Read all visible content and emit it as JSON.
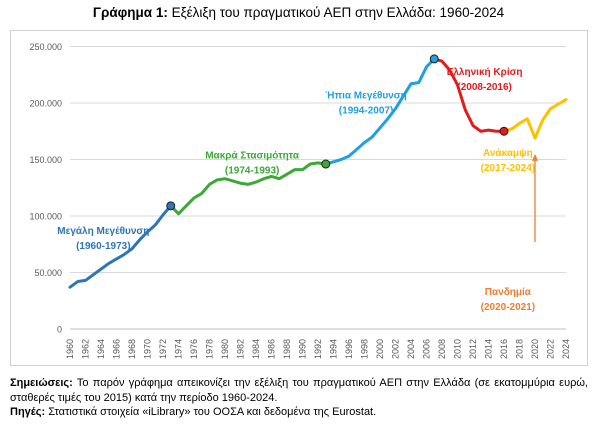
{
  "title": {
    "bold": "Γράφημα 1:",
    "text": " Εξέλιξη του πραγματικού ΑΕΠ στην Ελλάδα: 1960-2024"
  },
  "notes": {
    "note_label": "Σημειώσεις:",
    "note_text": " Το παρόν γράφημα απεικονίζει την εξέλιξη του πραγματικού ΑΕΠ στην Ελλάδα (σε εκατομμύρια ευρώ, σταθερές τιμές του 2015) κατά την περίοδο 1960-2024.",
    "source_label": "Πηγές:",
    "source_text": " Στατιστικά στοιχεία «iLibrary» του ΟΟΣΑ και δεδομένα της Eurostat."
  },
  "colors": {
    "phase1": "#2e75b6",
    "phase2": "#3aaa35",
    "phase3": "#1fa0e0",
    "phase4": "#e41a1c",
    "phase5": "#ffc000",
    "pandemic": "#ed7d31"
  },
  "chart_data": {
    "type": "line",
    "title": "",
    "xlabel": "",
    "ylabel": "",
    "ylim": [
      0,
      250000
    ],
    "y_ticks": [
      0,
      50000,
      100000,
      150000,
      200000,
      250000
    ],
    "y_tick_labels": [
      "0",
      "50.000",
      "100.000",
      "150.000",
      "200.000",
      "250.000"
    ],
    "x_ticks": [
      1960,
      1962,
      1964,
      1966,
      1968,
      1970,
      1972,
      1974,
      1976,
      1978,
      1980,
      1982,
      1984,
      1986,
      1988,
      1990,
      1992,
      1994,
      1996,
      1998,
      2000,
      2002,
      2004,
      2006,
      2008,
      2010,
      2012,
      2014,
      2016,
      2018,
      2020,
      2022,
      2024
    ],
    "grid": "horizontal",
    "series": [
      {
        "label": "Μεγάλη Μεγέθυνση (1960-1973)",
        "color": "#2e75b6",
        "x": [
          1960,
          1961,
          1962,
          1963,
          1964,
          1965,
          1966,
          1967,
          1968,
          1969,
          1970,
          1971,
          1972,
          1973
        ],
        "y": [
          37000,
          42000,
          43000,
          48000,
          53000,
          58000,
          62000,
          66000,
          71000,
          79000,
          86000,
          92000,
          101000,
          109000
        ]
      },
      {
        "label": "Μακρά Στασιμότητα (1974-1993)",
        "color": "#3aaa35",
        "x": [
          1973,
          1974,
          1975,
          1976,
          1977,
          1978,
          1979,
          1980,
          1981,
          1982,
          1983,
          1984,
          1985,
          1986,
          1987,
          1988,
          1989,
          1990,
          1991,
          1992,
          1993
        ],
        "y": [
          109000,
          102000,
          109000,
          116000,
          120000,
          128000,
          132000,
          133000,
          131000,
          129000,
          128000,
          130000,
          133000,
          135000,
          133000,
          137000,
          141000,
          141000,
          146000,
          147000,
          146000
        ]
      },
      {
        "label": "Ήπια Μεγέθυνση (1994-2007)",
        "color": "#1fa0e0",
        "x": [
          1993,
          1994,
          1995,
          1996,
          1997,
          1998,
          1999,
          2000,
          2001,
          2002,
          2003,
          2004,
          2005,
          2006,
          2007
        ],
        "y": [
          146000,
          148000,
          150000,
          153000,
          159000,
          165000,
          170000,
          178000,
          186000,
          195000,
          206000,
          217000,
          218000,
          232000,
          239000
        ]
      },
      {
        "label": "Ελληνική Κρίση (2008-2016)",
        "color": "#e41a1c",
        "x": [
          2007,
          2008,
          2009,
          2010,
          2011,
          2012,
          2013,
          2014,
          2015,
          2016
        ],
        "y": [
          239000,
          237000,
          229000,
          216000,
          194000,
          180000,
          175000,
          176000,
          175000,
          175000
        ]
      },
      {
        "label": "Ανάκαμψη (2017-2024)",
        "color": "#ffc000",
        "x": [
          2016,
          2017,
          2018,
          2019,
          2020,
          2021,
          2022,
          2023,
          2024
        ],
        "y": [
          175000,
          177000,
          182000,
          186000,
          169000,
          185000,
          195000,
          199000,
          203000
        ]
      }
    ],
    "markers": [
      {
        "x": 1973,
        "y": 109000,
        "color": "#2e75b6"
      },
      {
        "x": 1993,
        "y": 146000,
        "color": "#3aaa35"
      },
      {
        "x": 2007,
        "y": 239000,
        "color": "#1fa0e0"
      },
      {
        "x": 2016,
        "y": 175000,
        "color": "#e41a1c"
      }
    ],
    "annotations": [
      {
        "name": "annotation-big-growth",
        "lines": [
          "Μεγάλη Μεγέθυνση",
          "(1960-1973)"
        ],
        "color": "#2e75b6",
        "x": 1964.3,
        "y": 84000
      },
      {
        "name": "annotation-long-stagnation",
        "lines": [
          "Μακρά Στασιμότητα",
          "(1974-1993)"
        ],
        "color": "#3aaa35",
        "x": 1983.5,
        "y": 151000
      },
      {
        "name": "annotation-mild-growth",
        "lines": [
          "Ήπια Μεγέθυνση",
          "(1994-2007)"
        ],
        "color": "#1fa0e0",
        "x": 1998.2,
        "y": 204000
      },
      {
        "name": "annotation-greek-crisis",
        "lines": [
          "Ελληνική Κρίση",
          "(2008-2016)"
        ],
        "color": "#e41a1c",
        "x": 2013.5,
        "y": 225000
      },
      {
        "name": "annotation-recovery",
        "lines": [
          "Ανάκαμψη",
          "(2017-2024)"
        ],
        "color": "#ffc000",
        "x": 2016.5,
        "y": 153000
      },
      {
        "name": "annotation-pandemic",
        "lines": [
          "Πανδημία",
          "(2020-2021)"
        ],
        "color": "#ed7d31",
        "x": 2016.5,
        "y": 30000
      }
    ],
    "pandemic_arrow": {
      "x": 2020,
      "from_y": 77000,
      "to_y": 155000,
      "color": "#ed7d31"
    }
  }
}
